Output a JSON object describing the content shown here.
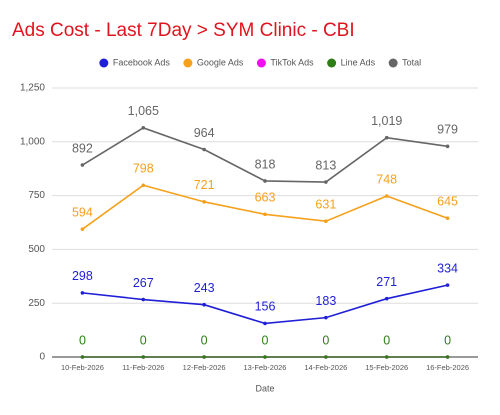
{
  "chart_data": {
    "type": "line",
    "title": "Ads Cost - Last 7Day > SYM Clinic - CBI",
    "x_label": "Date",
    "categories": [
      "10-Feb-2026",
      "11-Feb-2026",
      "12-Feb-2026",
      "13-Feb-2026",
      "14-Feb-2026",
      "15-Feb-2026",
      "16-Feb-2026"
    ],
    "series": [
      {
        "name": "Facebook Ads",
        "color": "#1f1fd6",
        "values": [
          298,
          267,
          243,
          156,
          183,
          271,
          334
        ]
      },
      {
        "name": "Google Ads",
        "color": "#f5a11d",
        "values": [
          594,
          798,
          721,
          663,
          631,
          748,
          645
        ]
      },
      {
        "name": "TikTok Ads",
        "color": "#f20ef2",
        "values": [
          0,
          0,
          0,
          0,
          0,
          0,
          0
        ],
        "show_labels": false
      },
      {
        "name": "Line Ads",
        "color": "#2e7d16",
        "values": [
          0,
          0,
          0,
          0,
          0,
          0,
          0
        ]
      },
      {
        "name": "Total",
        "color": "#666666",
        "values": [
          892,
          1065,
          964,
          818,
          813,
          1019,
          979
        ],
        "value_labels": [
          "892",
          "1,065",
          "964",
          "818",
          "813",
          "1,019",
          "979"
        ]
      }
    ],
    "ylim": [
      0,
      1250
    ],
    "yticks": [
      0,
      250,
      500,
      750,
      {
        "value": 1000,
        "label": "1,000"
      },
      {
        "value": 1250,
        "label": "1,250"
      }
    ],
    "grid": true,
    "legend": "top"
  }
}
